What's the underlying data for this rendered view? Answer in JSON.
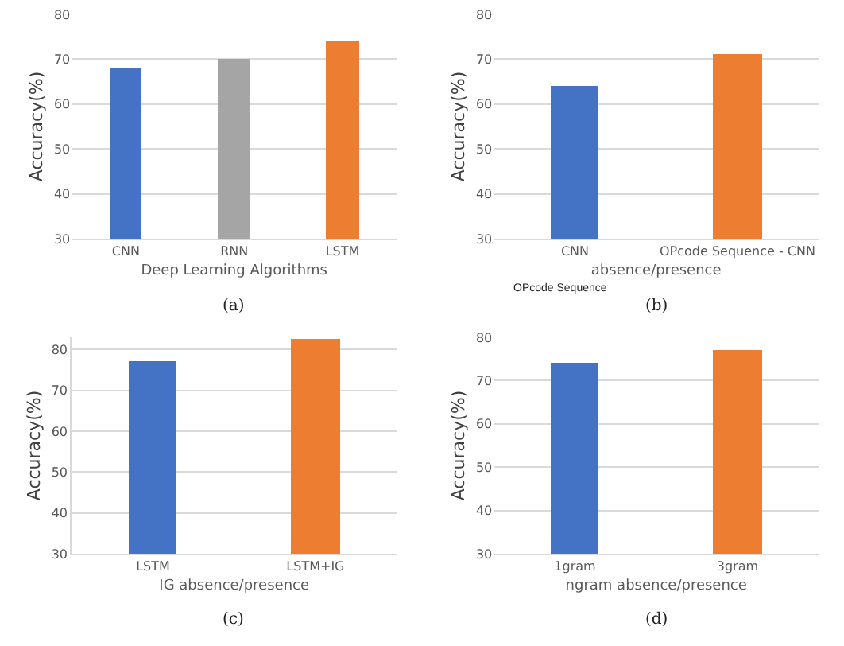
{
  "chart_data": [
    {
      "type": "bar",
      "categories": [
        "CNN",
        "RNN",
        "LSTM"
      ],
      "values": [
        68,
        70,
        74
      ],
      "colors": [
        "#4472c4",
        "#a5a5a5",
        "#ed7d31"
      ],
      "xlabel": "Deep Learning Algorithms",
      "ylabel": "Accuracy(%)",
      "ylim": [
        30,
        80
      ],
      "yticks": [
        30,
        40,
        50,
        60,
        70,
        80
      ],
      "grid": "y",
      "annotations": [
        "(a)"
      ]
    },
    {
      "type": "bar",
      "categories": [
        "CNN",
        "OPcode Sequence - CNN"
      ],
      "values": [
        64,
        71
      ],
      "colors": [
        "#4472c4",
        "#ed7d31"
      ],
      "xlabel": "absence/presence",
      "ylabel": "Accuracy(%)",
      "ylim": [
        30,
        80
      ],
      "yticks": [
        30,
        40,
        50,
        60,
        70,
        80
      ],
      "grid": "y",
      "annotations": [
        "OPcode Sequence",
        "(b)"
      ]
    },
    {
      "type": "bar",
      "categories": [
        "LSTM",
        "LSTM+IG"
      ],
      "values": [
        77,
        82.5
      ],
      "colors": [
        "#4472c4",
        "#ed7d31"
      ],
      "xlabel": "IG absence/presence",
      "ylabel": "Accuracy(%)",
      "ylim": [
        30,
        83
      ],
      "yticks": [
        30,
        40,
        50,
        60,
        70,
        80
      ],
      "grid": "y",
      "annotations": [
        "(c)"
      ]
    },
    {
      "type": "bar",
      "categories": [
        "1gram",
        "3gram"
      ],
      "values": [
        74,
        77
      ],
      "colors": [
        "#4472c4",
        "#ed7d31"
      ],
      "xlabel": "ngram absence/presence",
      "ylabel": "Accuracy(%)",
      "ylim": [
        30,
        80
      ],
      "yticks": [
        30,
        40,
        50,
        60,
        70,
        80
      ],
      "grid": "y",
      "annotations": [
        "(d)"
      ]
    }
  ]
}
